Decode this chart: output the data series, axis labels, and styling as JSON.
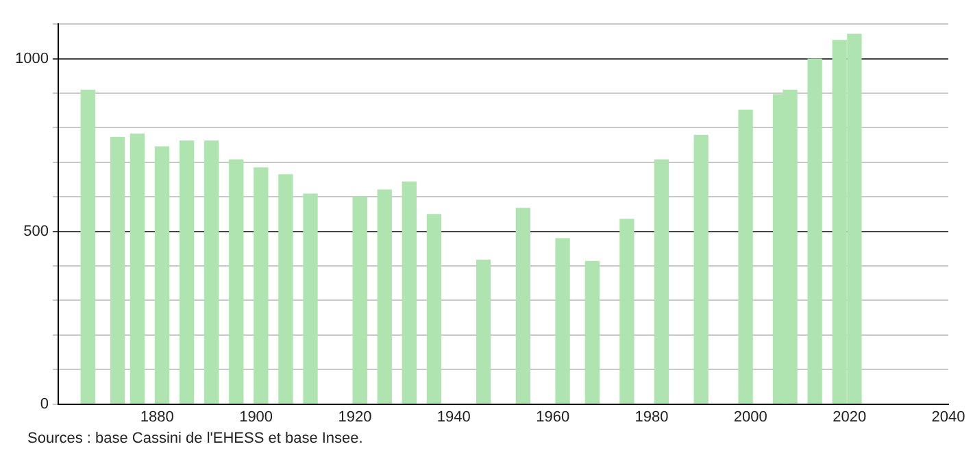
{
  "chart_data": {
    "type": "bar",
    "x": [
      1866,
      1872,
      1876,
      1881,
      1886,
      1891,
      1896,
      1901,
      1906,
      1911,
      1921,
      1926,
      1931,
      1936,
      1946,
      1954,
      1962,
      1968,
      1975,
      1982,
      1990,
      1999,
      2006,
      2008,
      2013,
      2018,
      2021
    ],
    "values": [
      909,
      772,
      782,
      745,
      762,
      762,
      707,
      684,
      664,
      608,
      600,
      620,
      643,
      549,
      417,
      567,
      479,
      413,
      535,
      707,
      778,
      851,
      896,
      909,
      999,
      1053,
      1071
    ],
    "color": "#afe3af",
    "xlim": [
      1860,
      2040
    ],
    "xticks": [
      1880,
      1900,
      1920,
      1940,
      1960,
      1980,
      2000,
      2020,
      2040
    ],
    "ylim": [
      0,
      1100
    ],
    "yticks": [
      0,
      {
        "value": 100,
        "label": null
      },
      {
        "value": 200,
        "label": null
      },
      {
        "value": 300,
        "label": null
      },
      {
        "value": 400,
        "label": null
      },
      500,
      {
        "value": 600,
        "label": null
      },
      {
        "value": 700,
        "label": null
      },
      {
        "value": 800,
        "label": null
      },
      {
        "value": 900,
        "label": null
      },
      1000,
      {
        "value": 1100,
        "label": null
      }
    ],
    "grid": "y",
    "annotations": [
      "Sources : base Cassini de l'EHESS et base Insee."
    ]
  }
}
